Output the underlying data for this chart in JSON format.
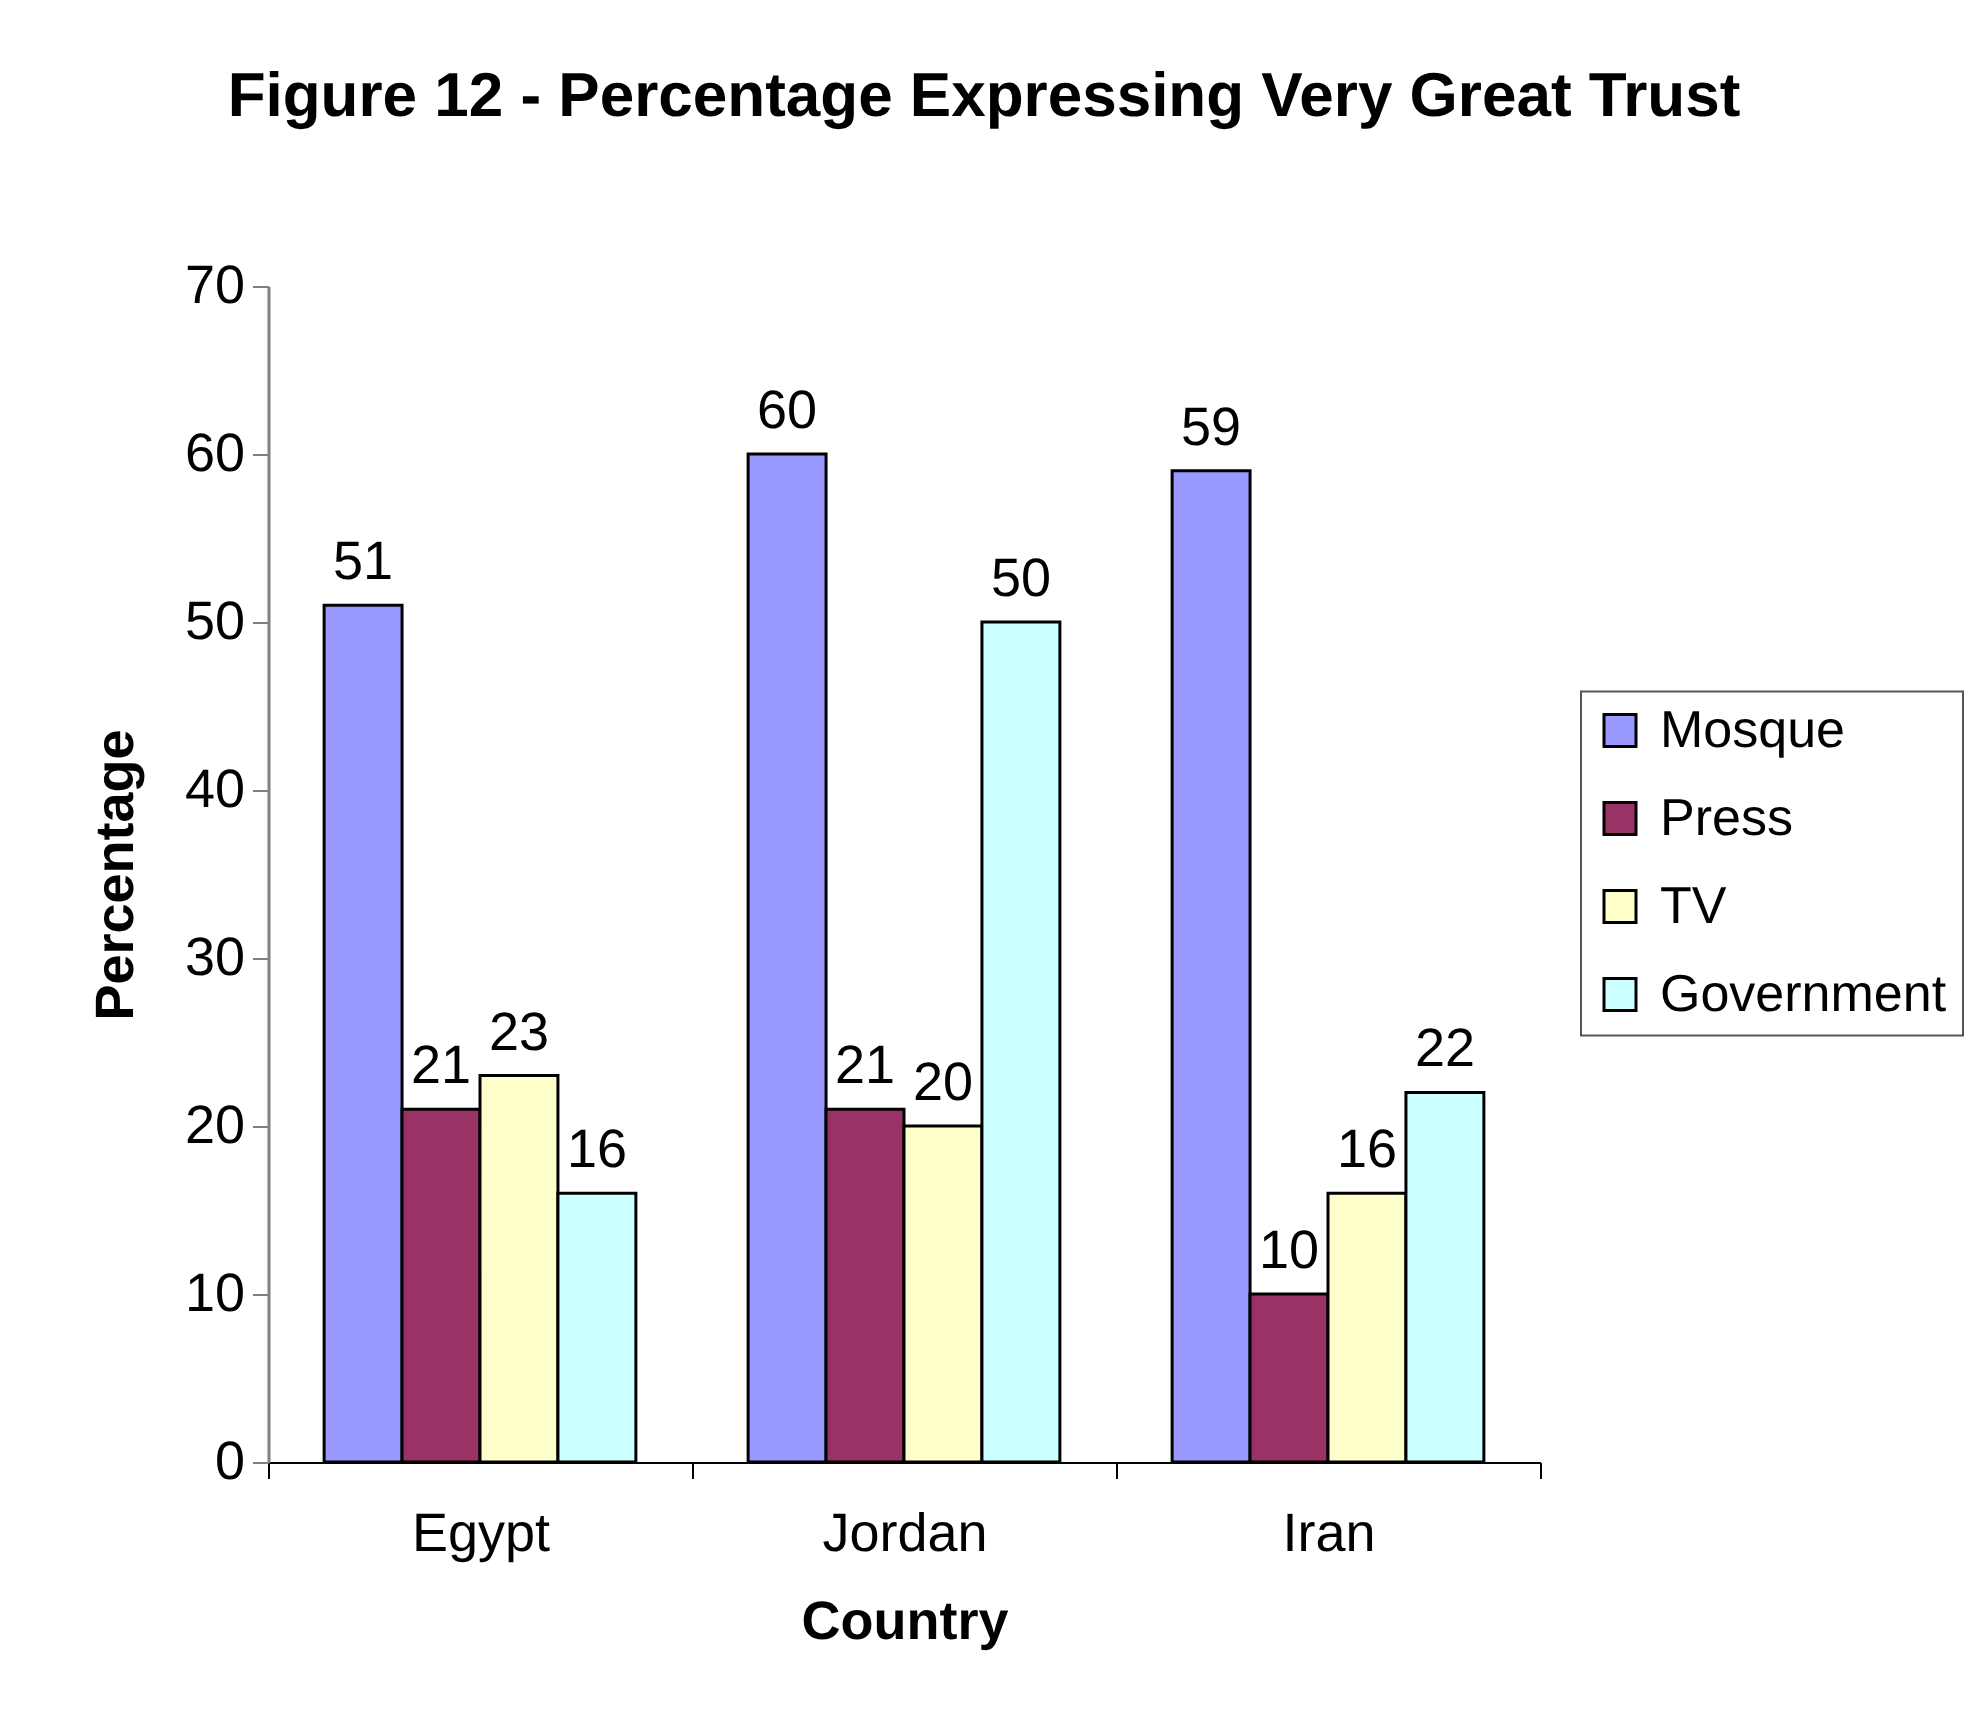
{
  "chart_data": {
    "type": "bar",
    "title": "Figure 12 - Percentage Expressing Very Great Trust",
    "xlabel": "Country",
    "ylabel": "Percentage",
    "categories": [
      "Egypt",
      "Jordan",
      "Iran"
    ],
    "series": [
      {
        "name": "Mosque",
        "color": "#9999ff",
        "values": [
          51,
          60,
          59
        ]
      },
      {
        "name": "Press",
        "color": "#993366",
        "values": [
          21,
          21,
          10
        ]
      },
      {
        "name": "TV",
        "color": "#ffffcc",
        "values": [
          23,
          20,
          16
        ]
      },
      {
        "name": "Government",
        "color": "#ccffff",
        "values": [
          16,
          50,
          22
        ]
      }
    ],
    "ylim": [
      0,
      70
    ],
    "yticks": [
      0,
      10,
      20,
      30,
      40,
      50,
      60,
      70
    ],
    "data_labels": true,
    "legend": "right"
  }
}
